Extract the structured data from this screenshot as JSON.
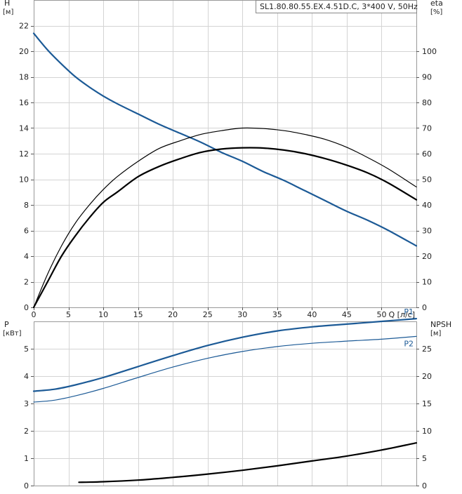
{
  "chart_data": [
    {
      "type": "line",
      "title": "SL1.80.80.55.EX.4.51D.C, 3*400 V, 50Hz",
      "xlabel": "Q [л/с]",
      "x_ticks": [
        "0",
        "5",
        "10",
        "15",
        "20",
        "25",
        "30",
        "35",
        "40",
        "45",
        "50"
      ],
      "xlim": [
        0,
        55
      ],
      "ylabel_left": "H",
      "ylabel_left_unit": "[м]",
      "ylim_left": [
        0,
        24
      ],
      "y_ticks_left": [
        "0",
        "2",
        "4",
        "6",
        "8",
        "10",
        "12",
        "14",
        "16",
        "18",
        "20",
        "22"
      ],
      "ylabel_right": "eta",
      "ylabel_right_unit": "[%]",
      "ylim_right": [
        0,
        120
      ],
      "y_ticks_right": [
        "0",
        "10",
        "20",
        "30",
        "40",
        "50",
        "60",
        "70",
        "80",
        "90",
        "100"
      ],
      "grid": true,
      "series": [
        {
          "axis": "left",
          "color": "#1c5a96",
          "x": [
            0,
            2,
            4,
            6,
            8,
            10,
            12,
            15,
            18,
            21,
            24,
            27,
            30,
            33,
            36,
            39,
            42,
            45,
            48,
            51,
            55
          ],
          "values": [
            21.4,
            20.1,
            19.0,
            18.0,
            17.2,
            16.5,
            15.9,
            15.1,
            14.3,
            13.6,
            12.9,
            12.1,
            11.4,
            10.6,
            9.9,
            9.1,
            8.3,
            7.5,
            6.8,
            6.0,
            4.8
          ]
        },
        {
          "axis": "right",
          "color": "#000000",
          "x": [
            0,
            2,
            4,
            6,
            8,
            10,
            12,
            15,
            18,
            21,
            24,
            27,
            30,
            33,
            36,
            39,
            42,
            45,
            48,
            51,
            55
          ],
          "values": [
            0,
            13,
            24,
            33,
            40,
            46,
            51,
            57,
            62,
            65,
            67.5,
            69,
            70,
            69.8,
            69,
            67.5,
            65.5,
            62.5,
            58.5,
            54,
            47
          ]
        },
        {
          "axis": "right",
          "color": "#000000",
          "x": [
            0,
            2,
            4,
            6,
            8,
            10,
            12,
            15,
            18,
            21,
            24,
            27,
            30,
            33,
            36,
            39,
            42,
            45,
            48,
            51,
            55
          ],
          "values": [
            0,
            10,
            20,
            28,
            35,
            41,
            45,
            51,
            55,
            58,
            60.5,
            61.8,
            62.3,
            62.2,
            61.4,
            60,
            58,
            55.5,
            52.5,
            48.5,
            42
          ]
        }
      ]
    },
    {
      "type": "line",
      "xlim": [
        0,
        55
      ],
      "ylabel_left": "P",
      "ylabel_left_unit": "[кВт]",
      "ylim_left": [
        0,
        6
      ],
      "y_ticks_left": [
        "0",
        "1",
        "2",
        "3",
        "4",
        "5"
      ],
      "ylabel_right": "NPSH",
      "ylabel_right_unit": "[м]",
      "ylim_right": [
        0,
        30
      ],
      "y_ticks_right": [
        "0",
        "5",
        "10",
        "15",
        "20",
        "25"
      ],
      "grid": true,
      "series": [
        {
          "name": "P1",
          "axis": "left",
          "color": "#1c5a96",
          "x": [
            0,
            3,
            6,
            10,
            15,
            20,
            25,
            30,
            35,
            40,
            45,
            50,
            55
          ],
          "values": [
            3.45,
            3.52,
            3.68,
            3.95,
            4.35,
            4.75,
            5.12,
            5.42,
            5.65,
            5.8,
            5.9,
            6.0,
            6.1
          ]
        },
        {
          "name": "P2",
          "axis": "left",
          "color": "#1c5a96",
          "x": [
            0,
            3,
            6,
            10,
            15,
            20,
            25,
            30,
            35,
            40,
            45,
            50,
            55
          ],
          "values": [
            3.05,
            3.12,
            3.28,
            3.55,
            3.95,
            4.33,
            4.65,
            4.9,
            5.08,
            5.2,
            5.28,
            5.35,
            5.45
          ]
        },
        {
          "axis": "right",
          "color": "#000000",
          "x": [
            6.5,
            10,
            15,
            20,
            25,
            30,
            35,
            40,
            45,
            50,
            55
          ],
          "values": [
            0.6,
            0.7,
            1.0,
            1.5,
            2.1,
            2.8,
            3.6,
            4.5,
            5.4,
            6.5,
            7.8
          ]
        }
      ]
    }
  ]
}
